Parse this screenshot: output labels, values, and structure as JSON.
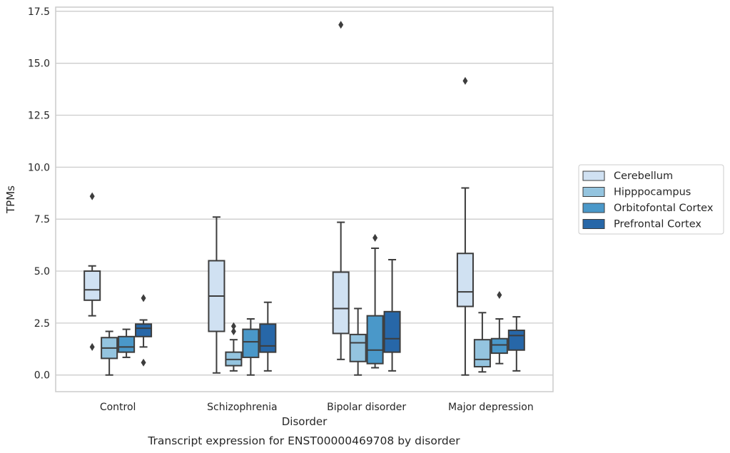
{
  "chart_data": {
    "type": "box",
    "title": "",
    "caption": "Transcript expression for ENST00000469708 by disorder",
    "xlabel": "Disorder",
    "ylabel": "TPMs",
    "ylim": [
      -0.8,
      17.7
    ],
    "yticks": [
      0.0,
      2.5,
      5.0,
      7.5,
      10.0,
      12.5,
      15.0,
      17.5
    ],
    "ytick_labels": [
      "0.0",
      "2.5",
      "5.0",
      "7.5",
      "10.0",
      "12.5",
      "15.0",
      "17.5"
    ],
    "grid": true,
    "legend_position": "right",
    "categories": [
      "Control",
      "Schizophrenia",
      "Bipolar disorder",
      "Major depression"
    ],
    "series": [
      {
        "name": "Cerebellum",
        "color": "#d0e1f2",
        "boxes": [
          {
            "whisker_low": 2.85,
            "q1": 3.6,
            "median": 4.1,
            "q3": 5.0,
            "whisker_high": 5.25,
            "outliers": [
              8.6,
              1.35
            ]
          },
          {
            "whisker_low": 0.1,
            "q1": 2.1,
            "median": 3.8,
            "q3": 5.5,
            "whisker_high": 7.6,
            "outliers": []
          },
          {
            "whisker_low": 0.75,
            "q1": 2.0,
            "median": 3.2,
            "q3": 4.95,
            "whisker_high": 7.35,
            "outliers": [
              16.85
            ]
          },
          {
            "whisker_low": 0.0,
            "q1": 3.3,
            "median": 4.0,
            "q3": 5.85,
            "whisker_high": 9.0,
            "outliers": [
              14.15
            ]
          }
        ]
      },
      {
        "name": "Hipppocampus",
        "color": "#94c4df",
        "boxes": [
          {
            "whisker_low": 0.0,
            "q1": 0.8,
            "median": 1.3,
            "q3": 1.8,
            "whisker_high": 2.1,
            "outliers": []
          },
          {
            "whisker_low": 0.2,
            "q1": 0.45,
            "median": 0.75,
            "q3": 1.1,
            "whisker_high": 1.7,
            "outliers": [
              2.35,
              2.1
            ]
          },
          {
            "whisker_low": 0.0,
            "q1": 0.65,
            "median": 1.55,
            "q3": 1.95,
            "whisker_high": 3.2,
            "outliers": []
          },
          {
            "whisker_low": 0.15,
            "q1": 0.4,
            "median": 0.75,
            "q3": 1.7,
            "whisker_high": 3.0,
            "outliers": []
          }
        ]
      },
      {
        "name": "Orbitofontal Cortex",
        "color": "#4a98c9",
        "boxes": [
          {
            "whisker_low": 0.85,
            "q1": 1.1,
            "median": 1.35,
            "q3": 1.85,
            "whisker_high": 2.2,
            "outliers": []
          },
          {
            "whisker_low": 0.0,
            "q1": 0.85,
            "median": 1.6,
            "q3": 2.2,
            "whisker_high": 2.7,
            "outliers": []
          },
          {
            "whisker_low": 0.35,
            "q1": 0.55,
            "median": 1.2,
            "q3": 2.85,
            "whisker_high": 6.1,
            "outliers": [
              6.6
            ]
          },
          {
            "whisker_low": 0.55,
            "q1": 1.05,
            "median": 1.45,
            "q3": 1.75,
            "whisker_high": 2.7,
            "outliers": [
              3.85
            ]
          }
        ]
      },
      {
        "name": "Prefrontal Cortex",
        "color": "#2767a8",
        "boxes": [
          {
            "whisker_low": 1.35,
            "q1": 1.85,
            "median": 2.25,
            "q3": 2.45,
            "whisker_high": 2.65,
            "outliers": [
              3.7,
              0.6
            ]
          },
          {
            "whisker_low": 0.2,
            "q1": 1.1,
            "median": 1.4,
            "q3": 2.45,
            "whisker_high": 3.5,
            "outliers": []
          },
          {
            "whisker_low": 0.2,
            "q1": 1.1,
            "median": 1.75,
            "q3": 3.05,
            "whisker_high": 5.55,
            "outliers": []
          },
          {
            "whisker_low": 0.2,
            "q1": 1.2,
            "median": 1.9,
            "q3": 2.15,
            "whisker_high": 2.8,
            "outliers": []
          }
        ]
      }
    ]
  }
}
